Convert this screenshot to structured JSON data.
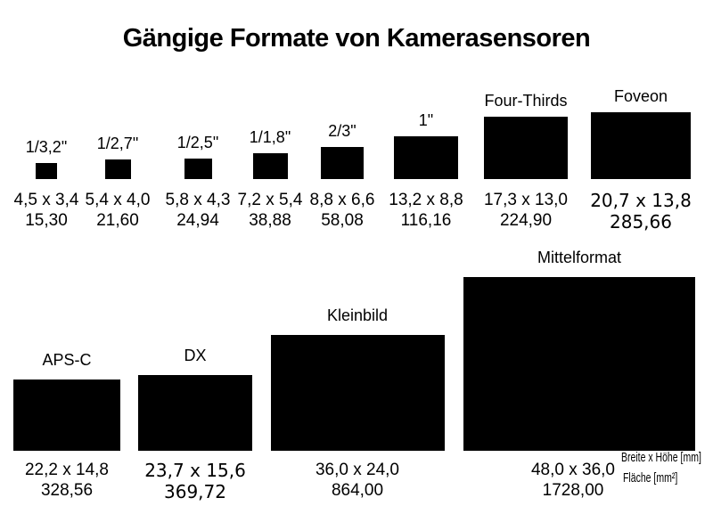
{
  "chart_data": {
    "type": "size-comparison",
    "title": "Gängige Formate von Kamerasensoren",
    "unit": "mm",
    "value_labels": {
      "dimensions": "Breite x Höhe [mm]",
      "area": "Fläche [mm²]"
    },
    "colors": {
      "background": "#ffffff",
      "sensor_fill": "#000000",
      "text": "#000000"
    },
    "sensors_row1": [
      {
        "label": "1/3,2\"",
        "width_mm": 4.5,
        "height_mm": 3.4,
        "dims": "4,5 x 3,4",
        "area": "15,30"
      },
      {
        "label": "1/2,7\"",
        "width_mm": 5.4,
        "height_mm": 4.0,
        "dims": "5,4 x 4,0",
        "area": "21,60"
      },
      {
        "label": "1/2,5\"",
        "width_mm": 5.8,
        "height_mm": 4.3,
        "dims": "5,8 x 4,3",
        "area": "24,94"
      },
      {
        "label": "1/1,8\"",
        "width_mm": 7.2,
        "height_mm": 5.4,
        "dims": "7,2 x 5,4",
        "area": "38,88"
      },
      {
        "label": "2/3\"",
        "width_mm": 8.8,
        "height_mm": 6.6,
        "dims": "8,8 x 6,6",
        "area": "58,08"
      },
      {
        "label": "1\"",
        "width_mm": 13.2,
        "height_mm": 8.8,
        "dims": "13,2 x 8,8",
        "area": "116,16"
      },
      {
        "label": "Four-Thirds",
        "width_mm": 17.3,
        "height_mm": 13.0,
        "dims": "17,3 x 13,0",
        "area": "224,90"
      },
      {
        "label": "Foveon",
        "width_mm": 20.7,
        "height_mm": 13.8,
        "dims": "20,7 x 13,8",
        "area": "285,66"
      }
    ],
    "sensors_row2": [
      {
        "label": "APS-C",
        "width_mm": 22.2,
        "height_mm": 14.8,
        "dims": "22,2 x 14,8",
        "area": "328,56"
      },
      {
        "label": "DX",
        "width_mm": 23.7,
        "height_mm": 15.6,
        "dims": "23,7 x 15,6",
        "area": "369,72"
      },
      {
        "label": "Kleinbild",
        "width_mm": 36.0,
        "height_mm": 24.0,
        "dims": "36,0 x 24,0",
        "area": "864,00"
      },
      {
        "label": "Mittelformat",
        "width_mm": 48.0,
        "height_mm": 36.0,
        "dims": "48,0 x 36,0",
        "area": "1728,00"
      }
    ]
  }
}
